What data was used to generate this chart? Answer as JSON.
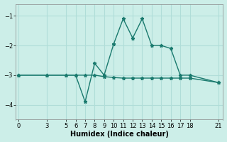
{
  "xlabel": "Humidex (Indice chaleur)",
  "background_color": "#cceee8",
  "grid_color": "#b0ddd8",
  "line_color": "#1a7a6e",
  "line1_x": [
    0,
    3,
    5,
    6,
    7,
    8,
    9,
    10,
    11,
    12,
    13,
    14,
    15,
    16,
    17,
    18,
    21
  ],
  "line1_y": [
    -3.0,
    -3.0,
    -3.0,
    -3.0,
    -3.0,
    -3.0,
    -3.05,
    -3.08,
    -3.1,
    -3.1,
    -3.1,
    -3.1,
    -3.1,
    -3.1,
    -3.1,
    -3.1,
    -3.25
  ],
  "line2_x": [
    0,
    3,
    5,
    6,
    7,
    8,
    9,
    10,
    11,
    12,
    13,
    14,
    15,
    16,
    17,
    18,
    21
  ],
  "line2_y": [
    -3.0,
    -3.0,
    -3.0,
    -3.0,
    -3.9,
    -2.6,
    -3.0,
    -1.95,
    -1.1,
    -1.75,
    -1.1,
    -2.0,
    -2.0,
    -2.1,
    -3.0,
    -3.0,
    -3.25
  ],
  "xticks": [
    0,
    3,
    5,
    6,
    7,
    8,
    9,
    10,
    11,
    12,
    13,
    14,
    15,
    16,
    17,
    18,
    21
  ],
  "yticks": [
    -4,
    -3,
    -2,
    -1
  ],
  "xlim": [
    -0.3,
    21.5
  ],
  "ylim": [
    -4.5,
    -0.6
  ]
}
